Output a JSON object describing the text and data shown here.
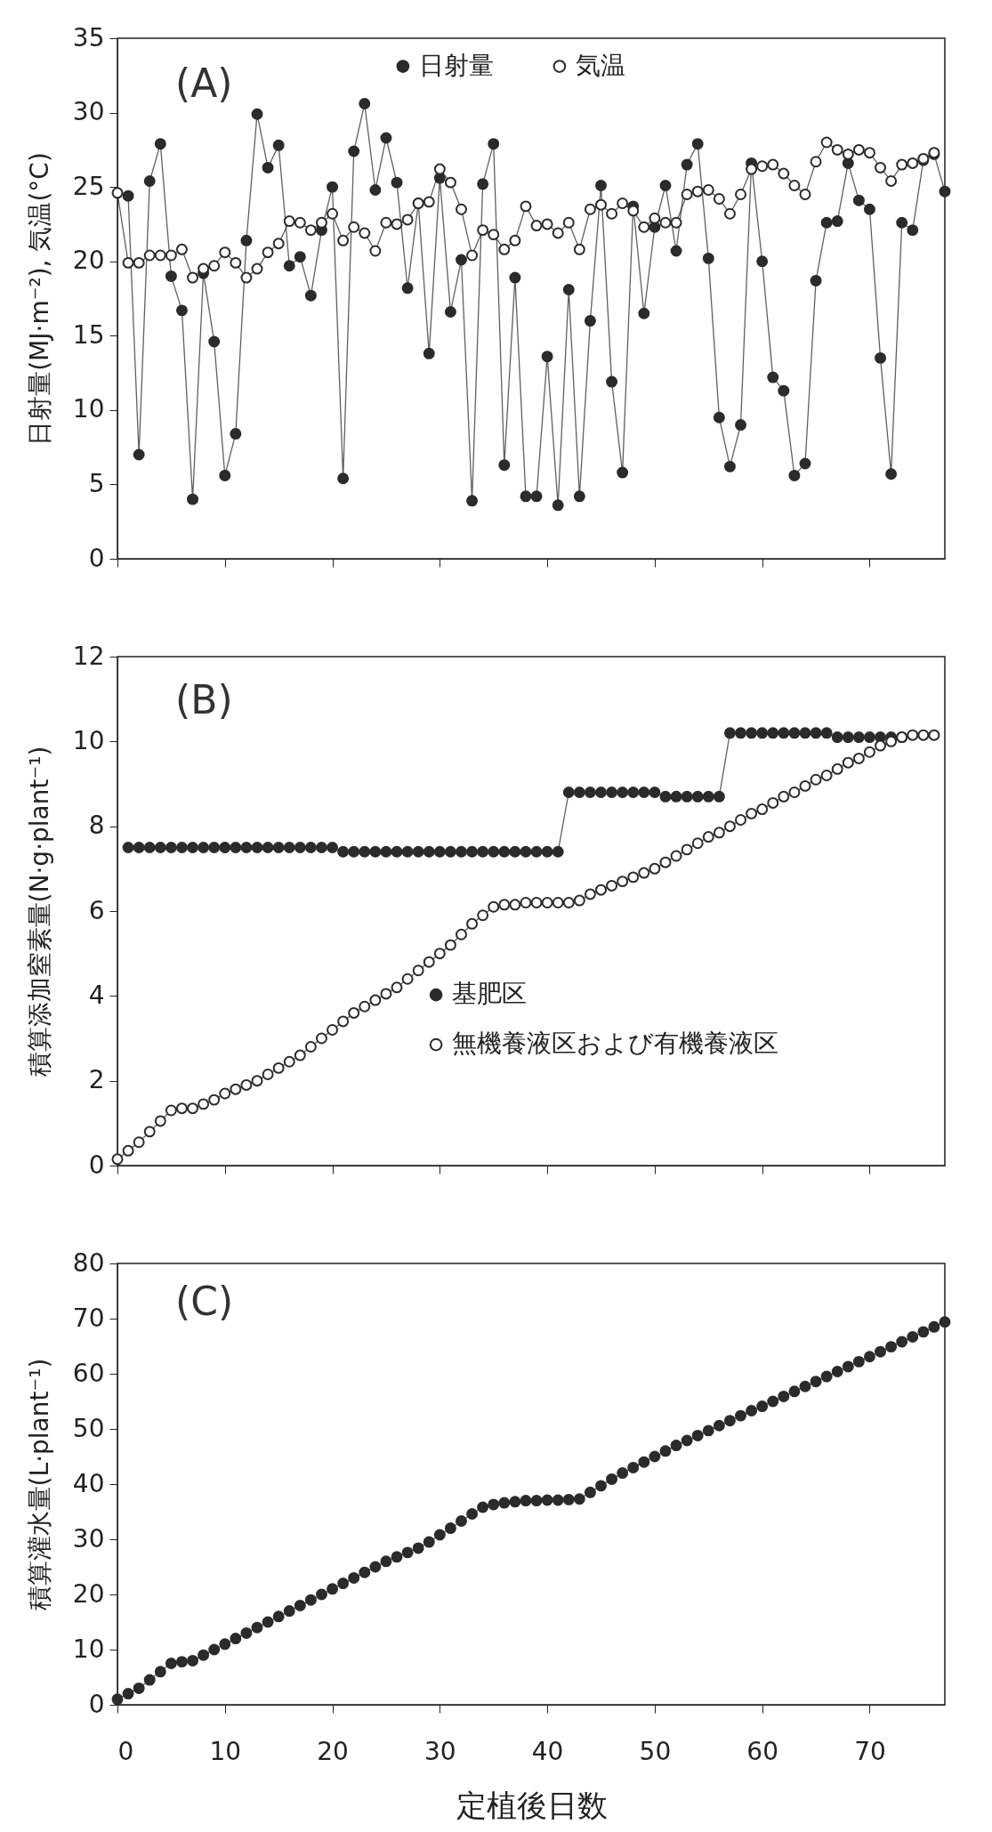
{
  "chart_data": [
    {
      "type": "line",
      "annotations": [
        "(A)"
      ],
      "ylabel": "日射量(MJ·m⁻²), 気温(°C)",
      "xlim": [
        0,
        77
      ],
      "xticks": [
        0,
        10,
        20,
        30,
        40,
        50,
        60,
        70
      ],
      "ylim": [
        0,
        35
      ],
      "yticks": [
        0,
        5,
        10,
        15,
        20,
        25,
        30,
        35
      ],
      "tick_labels": "y",
      "legend": "top",
      "series": [
        {
          "name": "日射量",
          "color": "#2b2b2b",
          "marker": "circle",
          "x": [
            1,
            2,
            3,
            4,
            5,
            6,
            7,
            8,
            9,
            10,
            11,
            12,
            13,
            14,
            15,
            16,
            17,
            18,
            19,
            20,
            21,
            22,
            23,
            24,
            25,
            26,
            27,
            28,
            29,
            30,
            31,
            32,
            33,
            34,
            35,
            36,
            37,
            38,
            39,
            40,
            41,
            42,
            43,
            44,
            45,
            46,
            47,
            48,
            49,
            50,
            51,
            52,
            53,
            54,
            55,
            56,
            57,
            58,
            59,
            60,
            61,
            62,
            63,
            64,
            65,
            66,
            67,
            68,
            69,
            70,
            71,
            72,
            73,
            74,
            75,
            76,
            77
          ],
          "values": [
            24.4,
            7.0,
            25.4,
            27.9,
            19.0,
            16.7,
            4.0,
            19.2,
            14.6,
            5.6,
            8.4,
            21.4,
            29.9,
            26.3,
            27.8,
            19.7,
            20.3,
            17.7,
            22.1,
            25.0,
            5.4,
            27.4,
            30.6,
            24.8,
            28.3,
            25.3,
            18.2,
            23.9,
            13.8,
            25.6,
            16.6,
            20.1,
            3.9,
            25.2,
            27.9,
            6.3,
            18.9,
            4.2,
            4.2,
            13.6,
            3.6,
            18.1,
            4.2,
            16.0,
            25.1,
            11.9,
            5.8,
            23.7,
            16.5,
            22.3,
            25.1,
            20.7,
            26.5,
            27.9,
            20.2,
            9.5,
            6.2,
            9.0,
            26.6,
            20.0,
            12.2,
            11.3,
            5.6,
            6.4,
            18.7,
            22.6,
            22.7,
            26.6,
            24.1,
            23.5,
            13.5,
            5.7,
            22.6,
            22.1,
            26.8,
            27.2,
            24.7
          ]
        },
        {
          "name": "気温",
          "color": "#2b2b2b",
          "marker": "circle-open",
          "x": [
            0,
            1,
            2,
            3,
            4,
            5,
            6,
            7,
            8,
            9,
            10,
            11,
            12,
            13,
            14,
            15,
            16,
            17,
            18,
            19,
            20,
            21,
            22,
            23,
            24,
            25,
            26,
            27,
            28,
            29,
            30,
            31,
            32,
            33,
            34,
            35,
            36,
            37,
            38,
            39,
            40,
            41,
            42,
            43,
            44,
            45,
            46,
            47,
            48,
            49,
            50,
            51,
            52,
            53,
            54,
            55,
            56,
            57,
            58,
            59,
            60,
            61,
            62,
            63,
            64,
            65,
            66,
            67,
            68,
            69,
            70,
            71,
            72,
            73,
            74,
            75,
            76
          ],
          "values": [
            24.6,
            19.9,
            19.9,
            20.4,
            20.4,
            20.4,
            20.8,
            18.9,
            19.5,
            19.7,
            20.6,
            19.9,
            18.9,
            19.5,
            20.6,
            21.2,
            22.7,
            22.6,
            22.1,
            22.6,
            23.2,
            21.4,
            22.3,
            21.9,
            20.7,
            22.6,
            22.5,
            22.8,
            23.9,
            24.0,
            26.2,
            25.3,
            23.5,
            20.4,
            22.1,
            21.8,
            20.8,
            21.4,
            23.7,
            22.4,
            22.5,
            21.9,
            22.6,
            20.8,
            23.5,
            23.8,
            23.2,
            23.9,
            23.4,
            22.3,
            22.9,
            22.6,
            22.6,
            24.5,
            24.7,
            24.8,
            24.2,
            23.2,
            24.5,
            26.2,
            26.4,
            26.5,
            25.9,
            25.1,
            24.5,
            26.7,
            28.0,
            27.5,
            27.2,
            27.5,
            27.3,
            26.3,
            25.4,
            26.5,
            26.6,
            26.9,
            27.3
          ]
        }
      ]
    },
    {
      "type": "line",
      "annotations": [
        "(B)"
      ],
      "ylabel": "積算添加窒素量(N·g·plant⁻¹)",
      "xlim": [
        0,
        77
      ],
      "xticks": [
        0,
        10,
        20,
        30,
        40,
        50,
        60,
        70
      ],
      "ylim": [
        0,
        12
      ],
      "yticks": [
        0,
        2,
        4,
        6,
        8,
        10,
        12
      ],
      "tick_labels": "y",
      "legend": "bottom",
      "series": [
        {
          "name": "基肥区",
          "color": "#2b2b2b",
          "marker": "circle",
          "x": [
            1,
            2,
            3,
            4,
            5,
            6,
            7,
            8,
            9,
            10,
            11,
            12,
            13,
            14,
            15,
            16,
            17,
            18,
            19,
            20,
            21,
            22,
            23,
            24,
            25,
            26,
            27,
            28,
            29,
            30,
            31,
            32,
            33,
            34,
            35,
            36,
            37,
            38,
            39,
            40,
            41,
            42,
            43,
            44,
            45,
            46,
            47,
            48,
            49,
            50,
            51,
            52,
            53,
            54,
            55,
            56,
            57,
            58,
            59,
            60,
            61,
            62,
            63,
            64,
            65,
            66,
            67,
            68,
            69,
            70,
            71,
            72,
            73
          ],
          "values": [
            7.5,
            7.5,
            7.5,
            7.5,
            7.5,
            7.5,
            7.5,
            7.5,
            7.5,
            7.5,
            7.5,
            7.5,
            7.5,
            7.5,
            7.5,
            7.5,
            7.5,
            7.5,
            7.5,
            7.5,
            7.4,
            7.4,
            7.4,
            7.4,
            7.4,
            7.4,
            7.4,
            7.4,
            7.4,
            7.4,
            7.4,
            7.4,
            7.4,
            7.4,
            7.4,
            7.4,
            7.4,
            7.4,
            7.4,
            7.4,
            7.4,
            8.8,
            8.8,
            8.8,
            8.8,
            8.8,
            8.8,
            8.8,
            8.8,
            8.8,
            8.7,
            8.7,
            8.7,
            8.7,
            8.7,
            8.7,
            10.2,
            10.2,
            10.2,
            10.2,
            10.2,
            10.2,
            10.2,
            10.2,
            10.2,
            10.2,
            10.1,
            10.1,
            10.1,
            10.1,
            10.1,
            10.1,
            10.1
          ]
        },
        {
          "name": "無機養液区および有機養液区",
          "color": "#2b2b2b",
          "marker": "circle-open",
          "x": [
            0,
            1,
            2,
            3,
            4,
            5,
            6,
            7,
            8,
            9,
            10,
            11,
            12,
            13,
            14,
            15,
            16,
            17,
            18,
            19,
            20,
            21,
            22,
            23,
            24,
            25,
            26,
            27,
            28,
            29,
            30,
            31,
            32,
            33,
            34,
            35,
            36,
            37,
            38,
            39,
            40,
            41,
            42,
            43,
            44,
            45,
            46,
            47,
            48,
            49,
            50,
            51,
            52,
            53,
            54,
            55,
            56,
            57,
            58,
            59,
            60,
            61,
            62,
            63,
            64,
            65,
            66,
            67,
            68,
            69,
            70,
            71,
            72,
            73,
            74,
            75,
            76
          ],
          "values": [
            0.15,
            0.35,
            0.55,
            0.8,
            1.05,
            1.3,
            1.35,
            1.35,
            1.45,
            1.55,
            1.7,
            1.8,
            1.9,
            2.0,
            2.15,
            2.3,
            2.45,
            2.6,
            2.8,
            3.0,
            3.2,
            3.4,
            3.6,
            3.75,
            3.9,
            4.05,
            4.2,
            4.4,
            4.6,
            4.8,
            5.0,
            5.2,
            5.45,
            5.7,
            5.9,
            6.1,
            6.15,
            6.15,
            6.2,
            6.2,
            6.2,
            6.2,
            6.2,
            6.25,
            6.4,
            6.5,
            6.6,
            6.7,
            6.8,
            6.9,
            7.0,
            7.15,
            7.3,
            7.45,
            7.6,
            7.75,
            7.85,
            8.0,
            8.15,
            8.3,
            8.4,
            8.55,
            8.7,
            8.8,
            8.95,
            9.1,
            9.2,
            9.35,
            9.5,
            9.6,
            9.75,
            9.9,
            10.0,
            10.1,
            10.15,
            10.15,
            10.15
          ]
        }
      ]
    },
    {
      "type": "line",
      "annotations": [
        "(C)"
      ],
      "xlabel": "定植後日数",
      "ylabel": "積算灌水量(L·plant⁻¹)",
      "xlim": [
        0,
        77
      ],
      "xticks": [
        0,
        10,
        20,
        30,
        40,
        50,
        60,
        70
      ],
      "ylim": [
        0,
        80
      ],
      "yticks": [
        0,
        10,
        20,
        30,
        40,
        50,
        60,
        70,
        80
      ],
      "x": [
        0,
        1,
        2,
        3,
        4,
        5,
        6,
        7,
        8,
        9,
        10,
        11,
        12,
        13,
        14,
        15,
        16,
        17,
        18,
        19,
        20,
        21,
        22,
        23,
        24,
        25,
        26,
        27,
        28,
        29,
        30,
        31,
        32,
        33,
        34,
        35,
        36,
        37,
        38,
        39,
        40,
        41,
        42,
        43,
        44,
        45,
        46,
        47,
        48,
        49,
        50,
        51,
        52,
        53,
        54,
        55,
        56,
        57,
        58,
        59,
        60,
        61,
        62,
        63,
        64,
        65,
        66,
        67,
        68,
        69,
        70,
        71,
        72,
        73,
        74,
        75,
        76,
        77
      ],
      "series": [
        {
          "color": "#2b2b2b",
          "marker": "circle",
          "values": [
            1,
            2,
            3,
            4.5,
            6,
            7.5,
            7.8,
            8,
            9,
            10,
            11,
            12,
            13,
            14,
            15,
            16,
            17,
            18,
            19,
            20,
            21,
            22,
            23,
            24,
            25,
            26,
            26.8,
            27.6,
            28.4,
            29.5,
            30.8,
            32,
            33.3,
            34.6,
            35.8,
            36.3,
            36.6,
            36.8,
            37,
            37,
            37.1,
            37.1,
            37.2,
            37.3,
            38.5,
            39.7,
            40.9,
            42,
            43,
            44,
            45,
            46,
            47,
            47.9,
            48.8,
            49.7,
            50.6,
            51.5,
            52.4,
            53.3,
            54.1,
            55,
            55.9,
            56.8,
            57.7,
            58.6,
            59.5,
            60.4,
            61.3,
            62.2,
            63.1,
            64,
            64.9,
            65.8,
            66.7,
            67.6,
            68.5,
            69.4
          ]
        }
      ]
    }
  ]
}
